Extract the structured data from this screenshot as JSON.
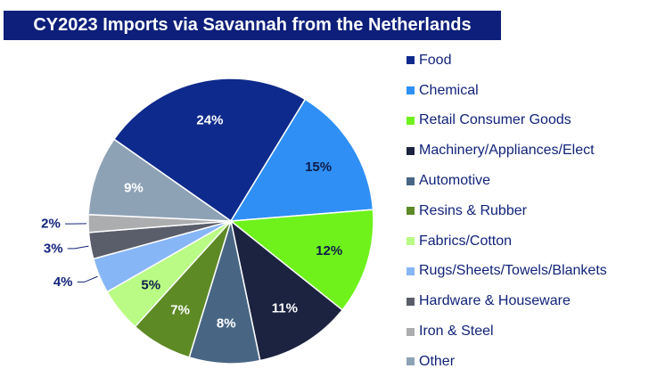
{
  "title": "CY2023 Imports via Savannah from the Netherlands",
  "chart_data": {
    "type": "pie",
    "title": "CY2023 Imports via Savannah from the Netherlands",
    "legend_position": "right",
    "slices": [
      {
        "label": "Food",
        "value": 24,
        "display": "24%",
        "color": "#0e2a8c",
        "label_color": "#ffffff"
      },
      {
        "label": "Chemical",
        "value": 15,
        "display": "15%",
        "color": "#2f8ff5",
        "label_color": "#0f1c4a"
      },
      {
        "label": "Retail Consumer Goods",
        "value": 12,
        "display": "12%",
        "color": "#6ff21c",
        "label_color": "#0f1c4a"
      },
      {
        "label": "Machinery/Appliances/Elect",
        "value": 11,
        "display": "11%",
        "color": "#1c2340",
        "label_color": "#ffffff"
      },
      {
        "label": "Automotive",
        "value": 8,
        "display": "8%",
        "color": "#486684",
        "label_color": "#ffffff"
      },
      {
        "label": "Resins & Rubber",
        "value": 7,
        "display": "7%",
        "color": "#5d8a25",
        "label_color": "#ffffff"
      },
      {
        "label": "Fabrics/Cotton",
        "value": 5,
        "display": "5%",
        "color": "#b9fb84",
        "label_color": "#0f1c4a"
      },
      {
        "label": "Rugs/Sheets/Towels/Blankets",
        "value": 4,
        "display": "4%",
        "color": "#87b6f6",
        "label_color": "#12237a"
      },
      {
        "label": "Hardware & Houseware",
        "value": 3,
        "display": "3%",
        "color": "#5a5e6b",
        "label_color": "#12237a"
      },
      {
        "label": "Iron & Steel",
        "value": 2,
        "display": "2%",
        "color": "#acadaf",
        "label_color": "#12237a"
      },
      {
        "label": "Other",
        "value": 9,
        "display": "9%",
        "color": "#8ea2b6",
        "label_color": "#ffffff"
      }
    ]
  }
}
